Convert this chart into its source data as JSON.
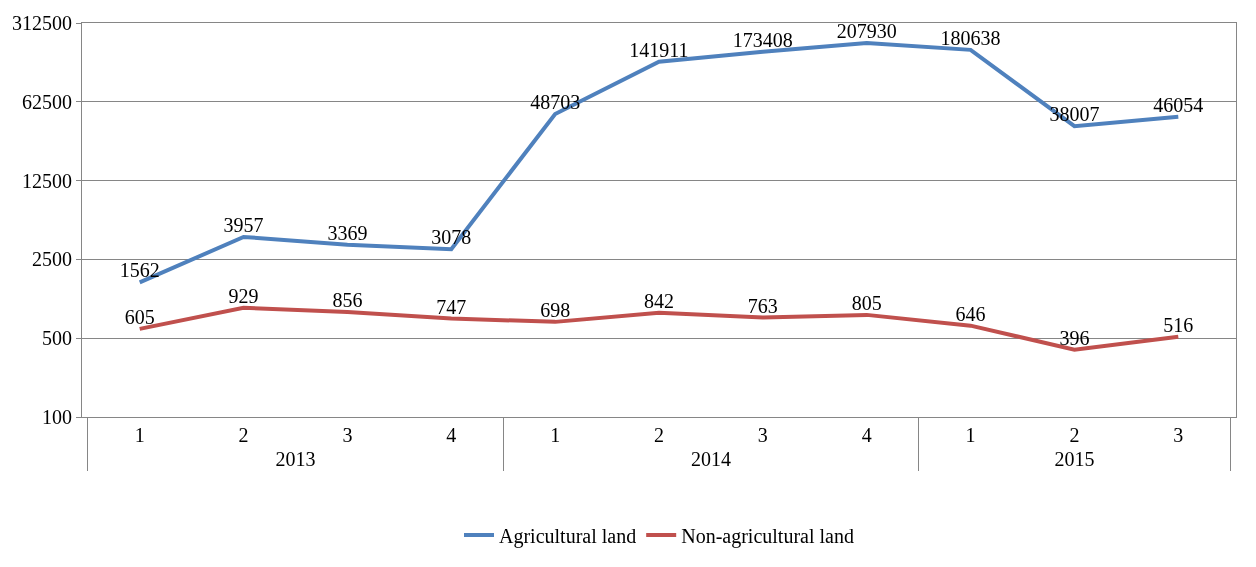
{
  "chart_data": {
    "type": "line",
    "categories": [
      "1",
      "2",
      "3",
      "4",
      "1",
      "2",
      "3",
      "4",
      "1",
      "2",
      "3"
    ],
    "annotations": [
      "2013",
      "2014",
      "2015"
    ],
    "series": [
      {
        "name": "Agricultural land",
        "color": "#4f81bd",
        "values": [
          1562,
          3957,
          3369,
          3078,
          48703,
          141911,
          173408,
          207930,
          180638,
          38007,
          46054
        ]
      },
      {
        "name": "Non-agricultural land",
        "color": "#c0504d",
        "values": [
          605,
          929,
          856,
          747,
          698,
          842,
          763,
          805,
          646,
          396,
          516
        ]
      }
    ],
    "log": true,
    "ylim": [
      100,
      312500
    ],
    "yticks": [
      100,
      500,
      2500,
      12500,
      62500,
      312500
    ],
    "grid": "y",
    "legend": "bottom",
    "marker": "none",
    "line_style": "solid",
    "data_labels": true
  }
}
